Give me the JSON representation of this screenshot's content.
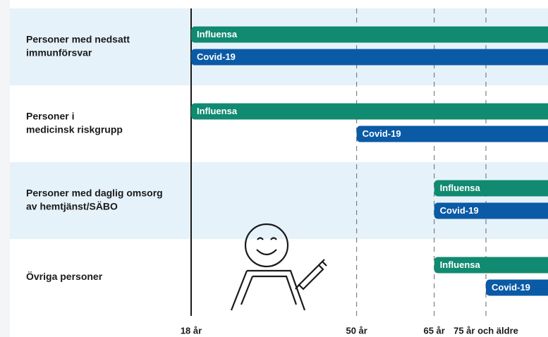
{
  "chart_data": {
    "type": "bar",
    "categories": [
      [
        "Personer med nedsatt",
        "immunförsvar"
      ],
      [
        "Personer i",
        "medicinsk riskgrupp"
      ],
      [
        "Personer med daglig omsorg",
        "av hemtjänst/SÄBO"
      ],
      [
        "Övriga personer"
      ]
    ],
    "series": [
      {
        "name": "Influensa",
        "color": "#108a70",
        "values": [
          18,
          18,
          65,
          65
        ]
      },
      {
        "name": "Covid-19",
        "color": "#0b5aa6",
        "values": [
          18,
          50,
          65,
          75
        ]
      }
    ],
    "xlim": [
      18,
      87
    ],
    "xticks": [
      {
        "value": 18,
        "label": "18 år"
      },
      {
        "value": 50,
        "label": "50 år"
      },
      {
        "value": 65,
        "label": "65 år"
      },
      {
        "value": 75,
        "label": "75 år och äldre"
      }
    ]
  }
}
